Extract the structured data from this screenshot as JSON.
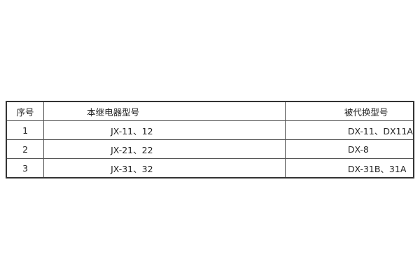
{
  "table": {
    "headers": [
      "序号",
      "本继电器型号",
      "被代换型号"
    ],
    "rows": [
      [
        "1",
        "JX-11、12",
        "DX-11、DX11A"
      ],
      [
        "2",
        "JX-21、22",
        "DX-8"
      ],
      [
        "3",
        "JX-31、32",
        "DX-31B、31A"
      ]
    ]
  }
}
